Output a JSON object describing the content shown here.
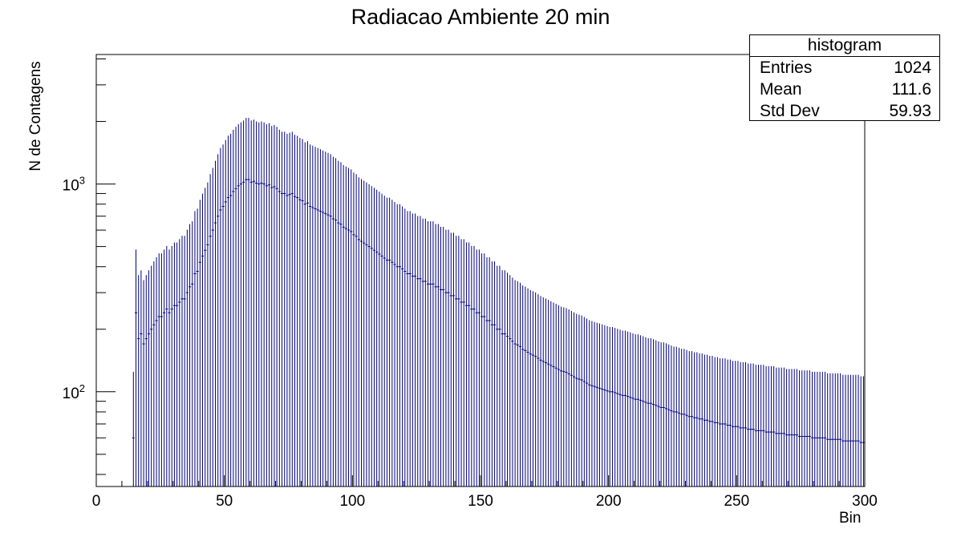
{
  "chart_data": {
    "type": "bar",
    "title": "Radiacao Ambiente 20 min",
    "xlabel": "Bin",
    "ylabel": "N de Contagens",
    "xlim": [
      0,
      300
    ],
    "ylim": [
      35,
      4200
    ],
    "yscale": "log",
    "grid": false,
    "xticks": [
      0,
      50,
      100,
      150,
      200,
      250,
      300
    ],
    "yticks_labeled": [
      {
        "base": "10",
        "exp": "2",
        "value": 100
      },
      {
        "base": "10",
        "exp": "3",
        "value": 1000
      }
    ],
    "bin_width": 1,
    "bins_start": 14,
    "counts": [
      60,
      240,
      180,
      190,
      170,
      180,
      190,
      200,
      210,
      220,
      230,
      230,
      240,
      250,
      240,
      250,
      260,
      260,
      270,
      280,
      280,
      300,
      320,
      330,
      370,
      380,
      420,
      450,
      480,
      510,
      560,
      600,
      650,
      700,
      750,
      780,
      820,
      860,
      880,
      920,
      950,
      980,
      1000,
      1020,
      1050,
      1050,
      1020,
      1030,
      1010,
      1000,
      1010,
      1000,
      980,
      990,
      960,
      970,
      950,
      920,
      900,
      900,
      880,
      890,
      900,
      870,
      860,
      840,
      830,
      800,
      810,
      780,
      770,
      760,
      750,
      740,
      730,
      720,
      710,
      700,
      680,
      670,
      650,
      640,
      620,
      610,
      600,
      590,
      570,
      560,
      540,
      530,
      520,
      510,
      500,
      490,
      480,
      470,
      460,
      450,
      440,
      430,
      430,
      420,
      410,
      400,
      400,
      390,
      380,
      370,
      370,
      360,
      360,
      350,
      350,
      340,
      340,
      330,
      330,
      330,
      320,
      320,
      310,
      310,
      300,
      300,
      290,
      290,
      280,
      280,
      270,
      270,
      260,
      260,
      250,
      250,
      240,
      240,
      230,
      230,
      220,
      220,
      210,
      210,
      200,
      200,
      190,
      190,
      185,
      180,
      175,
      170,
      168,
      165,
      160,
      158,
      155,
      152,
      150,
      148,
      145,
      142,
      140,
      138,
      136,
      134,
      132,
      130,
      128,
      126,
      125,
      124,
      122,
      120,
      118,
      116,
      115,
      114,
      112,
      110,
      108,
      107,
      106,
      105,
      104,
      103,
      102,
      101,
      100,
      100,
      99,
      98,
      97,
      96,
      96,
      95,
      94,
      93,
      92,
      92,
      91,
      90,
      89,
      88,
      88,
      87,
      86,
      85,
      84,
      84,
      83,
      82,
      81,
      80,
      80,
      79,
      78,
      78,
      77,
      76,
      76,
      75,
      75,
      74,
      74,
      73,
      73,
      72,
      72,
      71,
      71,
      70,
      70,
      70,
      69,
      69,
      68,
      68,
      68,
      67,
      67,
      67,
      66,
      66,
      66,
      65,
      65,
      65,
      65,
      64,
      64,
      64,
      64,
      63,
      63,
      63,
      63,
      62,
      62,
      62,
      62,
      62,
      61,
      61,
      61,
      61,
      61,
      60,
      60,
      60,
      60,
      60,
      60,
      59,
      59,
      59,
      59,
      59,
      59,
      58,
      58,
      58,
      58,
      58,
      58,
      58,
      57,
      57,
      57,
      57,
      57,
      57,
      57,
      56,
      56,
      56,
      56
    ]
  },
  "stats_box": {
    "name": "histogram",
    "rows": [
      {
        "label": "Entries",
        "value": "1024"
      },
      {
        "label": "Mean",
        "value": "111.6"
      },
      {
        "label": "Std Dev",
        "value": "59.93"
      }
    ]
  },
  "colors": {
    "line": "#000080",
    "axis": "#000000"
  }
}
